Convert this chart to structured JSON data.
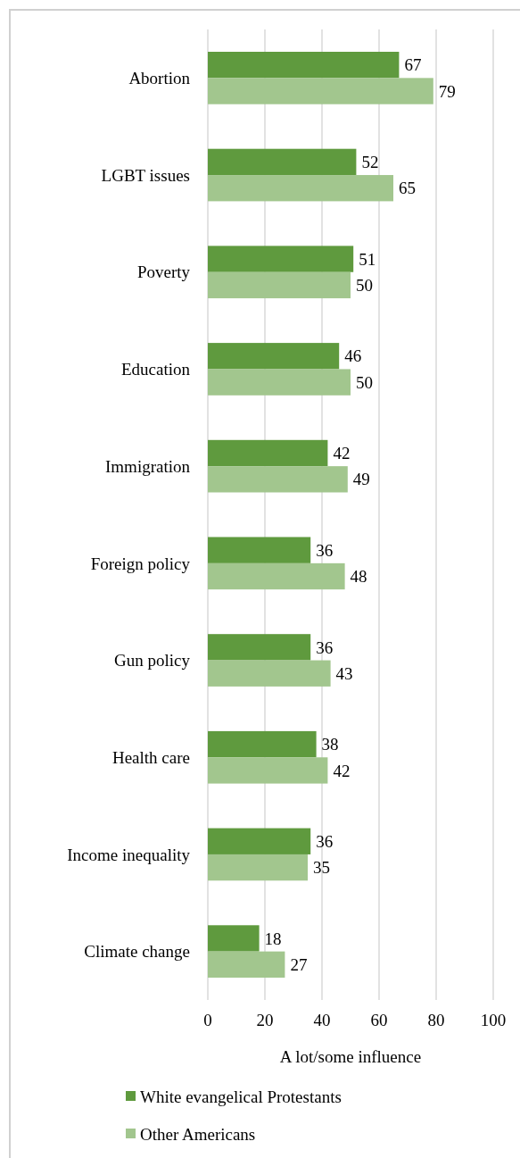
{
  "chart_data": {
    "type": "bar",
    "orientation": "horizontal",
    "xlabel": "A lot/some influence",
    "categories": [
      "Abortion",
      "LGBT issues",
      "Poverty",
      "Education",
      "Immigration",
      "Foreign policy",
      "Gun policy",
      "Health care",
      "Income inequality",
      "Climate change"
    ],
    "series": [
      {
        "name": "White evangelical Protestants",
        "color": "#5f9a3e",
        "values": [
          67,
          52,
          51,
          46,
          42,
          36,
          36,
          38,
          36,
          18
        ]
      },
      {
        "name": "Other Americans",
        "color": "#a2c68e",
        "values": [
          79,
          65,
          50,
          50,
          49,
          48,
          43,
          42,
          35,
          27
        ]
      }
    ],
    "xlim": [
      0,
      100
    ],
    "xticks": [
      0,
      20,
      40,
      60,
      80,
      100
    ],
    "grid": "x",
    "data_labels": true,
    "legend": "bottom left"
  }
}
